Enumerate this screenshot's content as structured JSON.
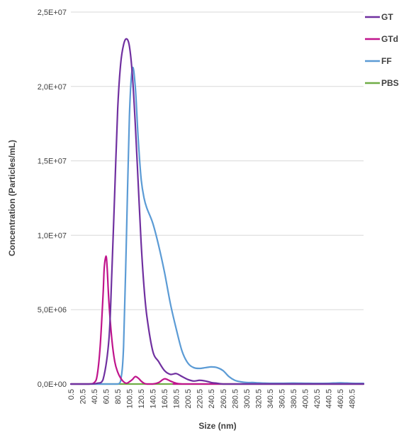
{
  "chart_data": {
    "type": "line",
    "title": "",
    "xlabel": "Size (nm)",
    "ylabel": "Concentration (Particles/mL)",
    "ylim": [
      0,
      25000000
    ],
    "xlim": [
      0.5,
      500.5
    ],
    "y_ticks": [
      "0,0E+00",
      "5,0E+06",
      "1,0E+07",
      "1,5E+07",
      "2,0E+07",
      "2,5E+07"
    ],
    "x_ticks": [
      "0.5",
      "20.5",
      "40.5",
      "60.5",
      "80.5",
      "100.5",
      "120.5",
      "140.5",
      "160.5",
      "180.5",
      "200.5",
      "220.5",
      "240.5",
      "260.5",
      "280.5",
      "300.5",
      "320.5",
      "340.5",
      "360.5",
      "380.5",
      "400.5",
      "420.5",
      "440.5",
      "460.5",
      "480.5"
    ],
    "grid": true,
    "legend": "right",
    "series": [
      {
        "name": "GT",
        "color": "#7030A0",
        "x": [
          0.5,
          30.5,
          45.5,
          55.5,
          65.5,
          70.5,
          75.5,
          80.5,
          85.5,
          90.5,
          95.5,
          100.5,
          105.5,
          110.5,
          115.5,
          120.5,
          125.5,
          130.5,
          140.5,
          150.5,
          160.5,
          170.5,
          180.5,
          190.5,
          200.5,
          210.5,
          220.5,
          230.5,
          240.5,
          250.5,
          260.5,
          280.5,
          300.5,
          500.5
        ],
        "y": [
          0,
          0,
          50000,
          300000,
          3000000,
          7500000,
          13000000,
          18500000,
          21500000,
          22800000,
          23200000,
          22700000,
          20800000,
          17500000,
          13500000,
          9500000,
          6500000,
          4500000,
          2200000,
          1500000,
          900000,
          650000,
          700000,
          500000,
          300000,
          200000,
          250000,
          200000,
          100000,
          50000,
          0,
          0,
          0,
          0
        ]
      },
      {
        "name": "GTd",
        "color": "#C0148C",
        "x": [
          0.5,
          30.5,
          40.5,
          45.5,
          50.5,
          55.5,
          57.5,
          60.5,
          62.5,
          65.5,
          70.5,
          75.5,
          80.5,
          85.5,
          90.5,
          95.5,
          100.5,
          105.5,
          110.5,
          115.5,
          120.5,
          125.5,
          130.5,
          140.5,
          150.5,
          160.5,
          170.5,
          180.5,
          190.5,
          200.5,
          500.5
        ],
        "y": [
          0,
          0,
          100000,
          600000,
          2500000,
          6000000,
          7800000,
          8600000,
          7800000,
          5500000,
          3000000,
          1500000,
          800000,
          400000,
          150000,
          50000,
          150000,
          300000,
          500000,
          400000,
          200000,
          50000,
          0,
          0,
          100000,
          350000,
          200000,
          50000,
          0,
          0,
          0
        ]
      },
      {
        "name": "FF",
        "color": "#5B9BD5",
        "x": [
          0.5,
          70.5,
          80.5,
          85.5,
          90.5,
          95.5,
          100.5,
          105.5,
          110.5,
          115.5,
          120.5,
          125.5,
          130.5,
          140.5,
          150.5,
          160.5,
          170.5,
          180.5,
          190.5,
          200.5,
          210.5,
          220.5,
          230.5,
          240.5,
          250.5,
          260.5,
          270.5,
          280.5,
          290.5,
          300.5,
          310.5,
          320.5,
          330.5,
          340.5,
          360.5,
          380.5,
          400.5,
          420.5,
          440.5,
          460.5,
          480.5,
          500.5
        ],
        "y": [
          0,
          0,
          0,
          200000,
          2500000,
          10000000,
          18000000,
          21200000,
          20000000,
          16500000,
          13800000,
          12500000,
          11800000,
          10800000,
          9300000,
          7500000,
          5400000,
          3700000,
          2200000,
          1400000,
          1100000,
          1050000,
          1100000,
          1150000,
          1100000,
          900000,
          500000,
          250000,
          150000,
          100000,
          100000,
          80000,
          60000,
          50000,
          50000,
          60000,
          50000,
          40000,
          50000,
          80000,
          50000,
          40000
        ]
      },
      {
        "name": "PBS",
        "color": "#70AD47",
        "x": [
          0.5,
          500.5
        ],
        "y": [
          0,
          0
        ]
      }
    ]
  }
}
